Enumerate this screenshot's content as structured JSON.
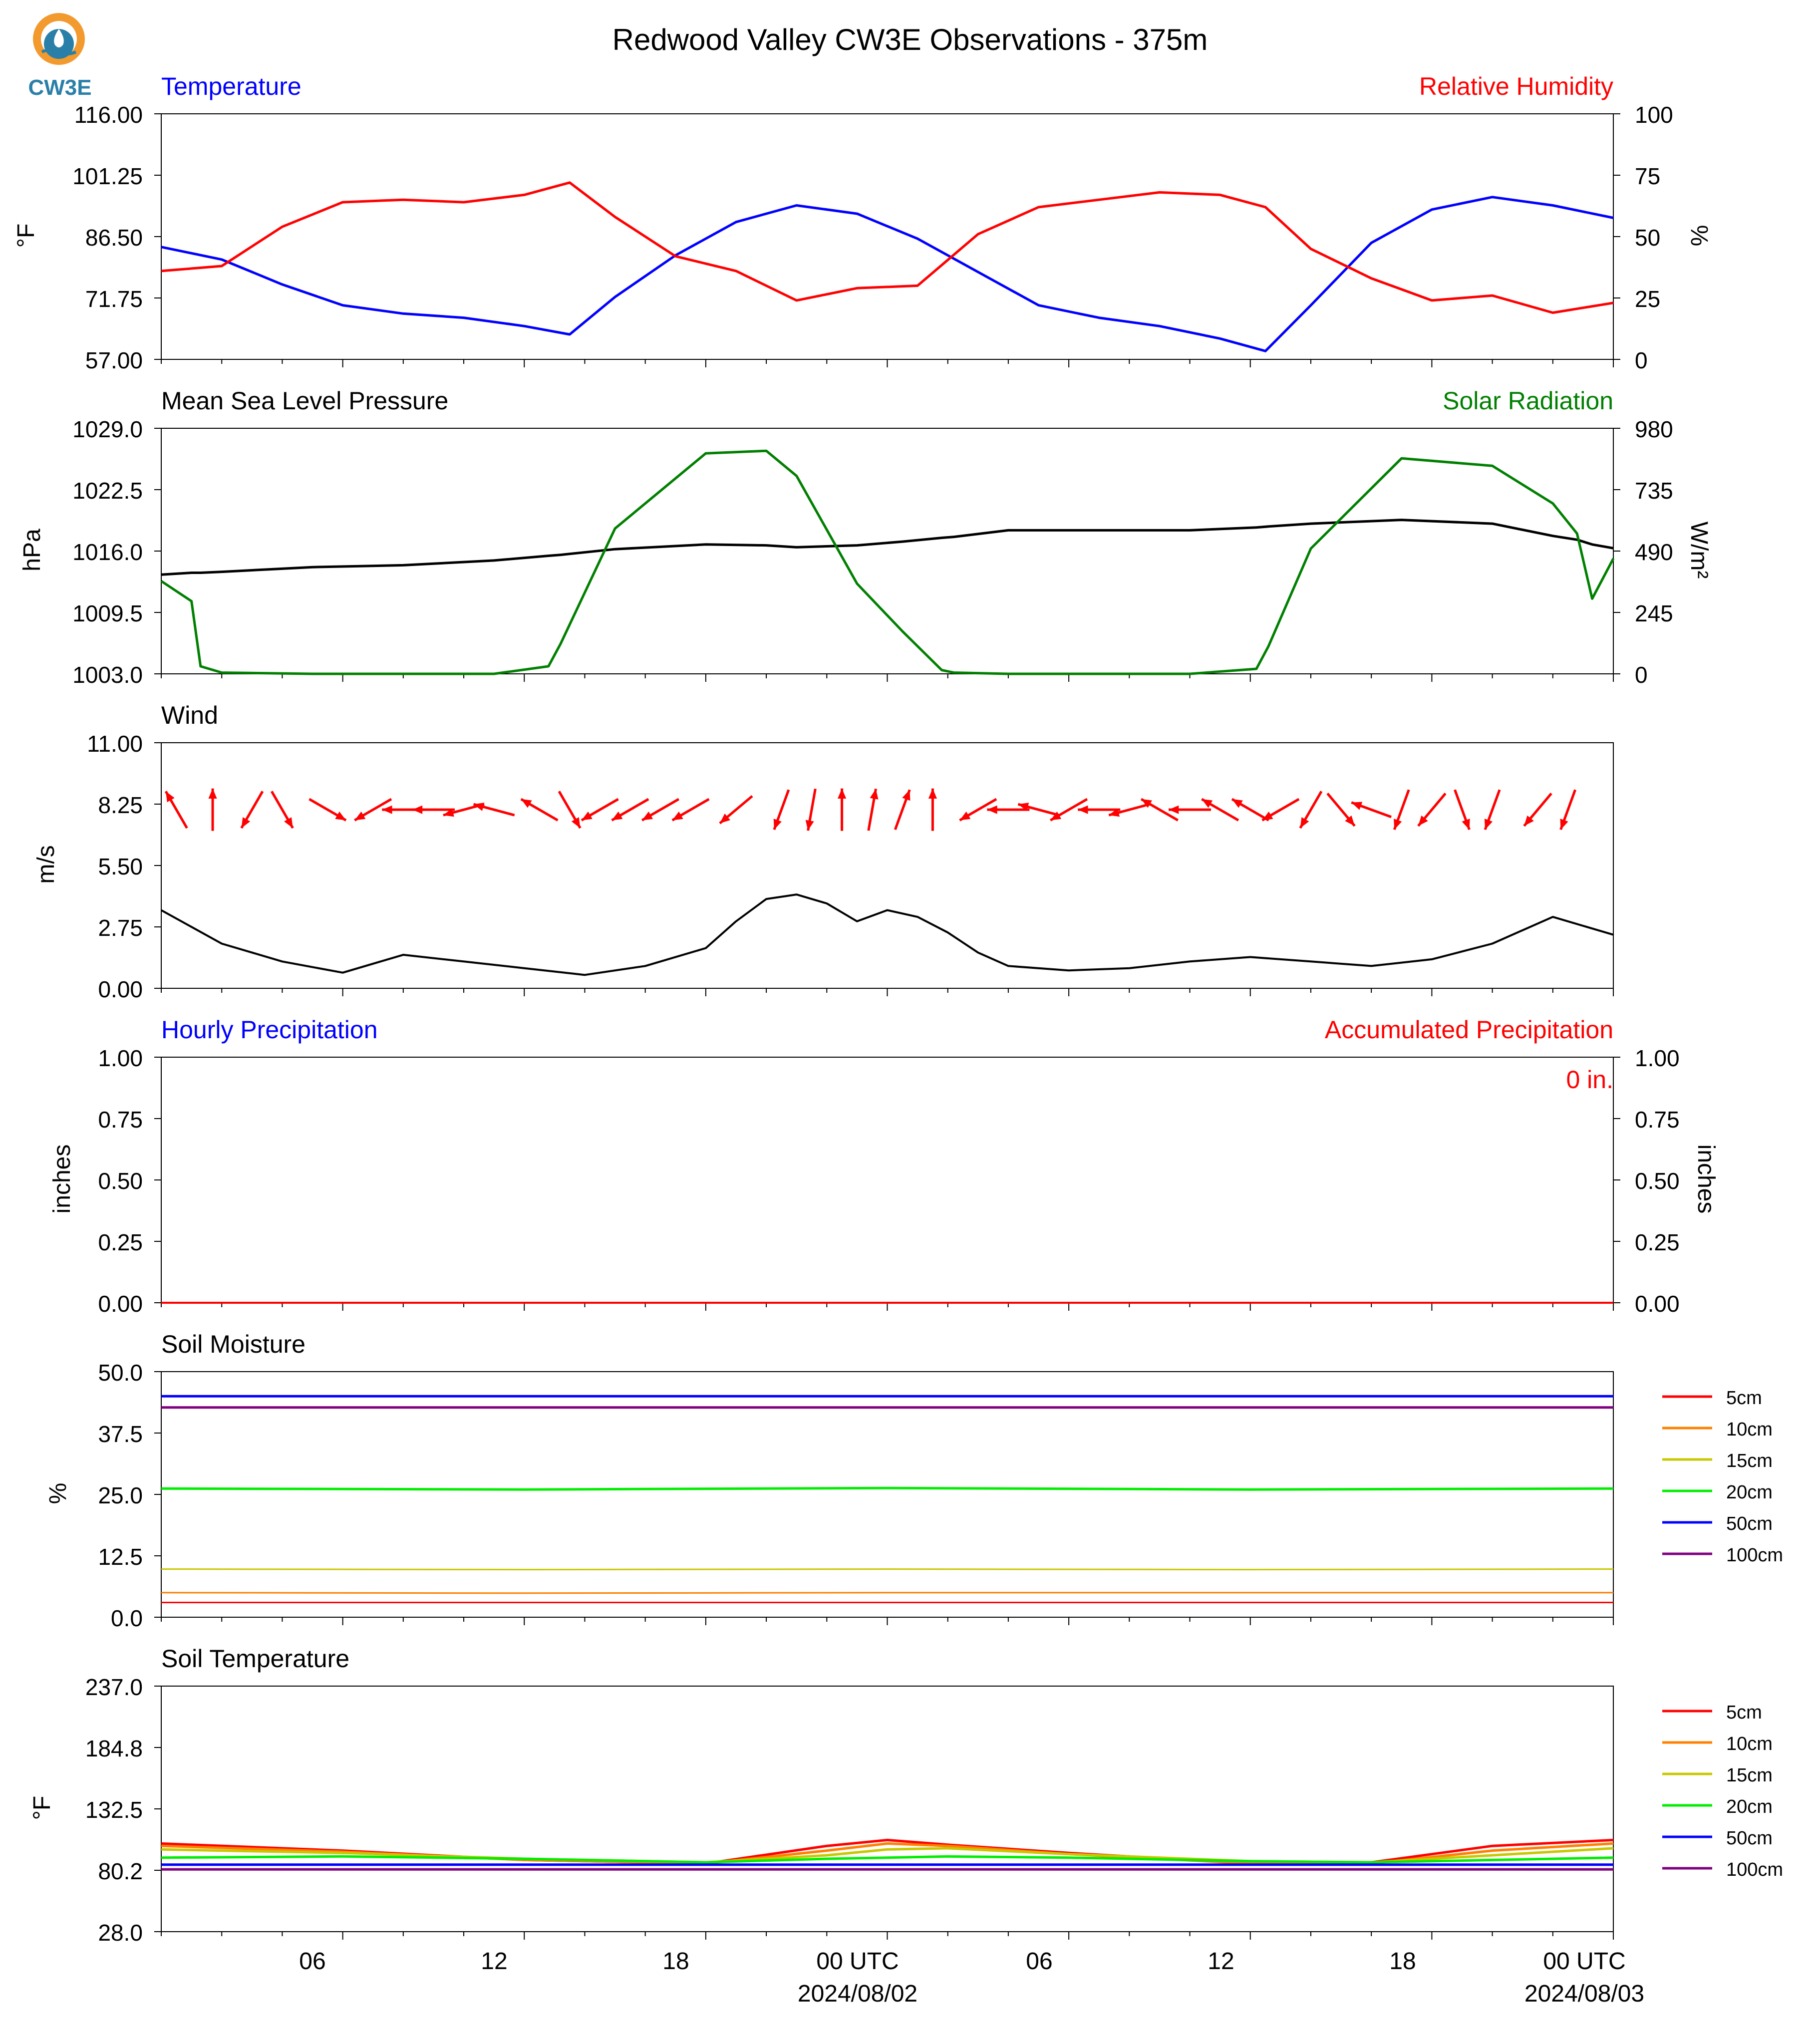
{
  "title": "Redwood Valley CW3E Observations - 375m",
  "logo": {
    "text": "CW3E",
    "icon": "cw3e-logo-icon",
    "colors": {
      "sun": "#f29a2e",
      "water": "#2a7fa8"
    }
  },
  "x_axis": {
    "ticks": [
      "06",
      "12",
      "18",
      "00 UTC",
      "06",
      "12",
      "18",
      "00 UTC"
    ],
    "dates": [
      "2024/08/02",
      "2024/08/03"
    ]
  },
  "panels": {
    "temperature": {
      "left_title": "Temperature",
      "right_title": "Relative Humidity",
      "left_ylabel": "°F",
      "right_ylabel": "%",
      "left_ticks": [
        "116.00",
        "101.25",
        "86.50",
        "71.75",
        "57.00"
      ],
      "right_ticks": [
        "100",
        "75",
        "50",
        "25",
        "0"
      ]
    },
    "pressure": {
      "left_title": "Mean Sea Level Pressure",
      "right_title": "Solar Radiation",
      "left_ylabel": "hPa",
      "right_ylabel": "W/m²",
      "left_ticks": [
        "1029.0",
        "1022.5",
        "1016.0",
        "1009.5",
        "1003.0"
      ],
      "right_ticks": [
        "980",
        "735",
        "490",
        "245",
        "0"
      ]
    },
    "wind": {
      "left_title": "Wind",
      "left_ylabel": "m/s",
      "left_ticks": [
        "11.00",
        "8.25",
        "5.50",
        "2.75",
        "0.00"
      ]
    },
    "precip": {
      "left_title": "Hourly Precipitation",
      "right_title": "Accumulated Precipitation",
      "left_ylabel": "inches",
      "right_ylabel": "inches",
      "left_ticks": [
        "1.00",
        "0.75",
        "0.50",
        "0.25",
        "0.00"
      ],
      "right_ticks": [
        "1.00",
        "0.75",
        "0.50",
        "0.25",
        "0.00"
      ],
      "total_label": "0 in."
    },
    "soil_moisture": {
      "left_title": "Soil Moisture",
      "left_ylabel": "%",
      "left_ticks": [
        "50.0",
        "37.5",
        "25.0",
        "12.5",
        "0.0"
      ]
    },
    "soil_temperature": {
      "left_title": "Soil Temperature",
      "left_ylabel": "°F",
      "left_ticks": [
        "237.0",
        "184.8",
        "132.5",
        "80.2",
        "28.0"
      ]
    }
  },
  "legend": [
    {
      "label": "5cm",
      "color": "#ff0000"
    },
    {
      "label": "10cm",
      "color": "#ff8000"
    },
    {
      "label": "15cm",
      "color": "#c8c800"
    },
    {
      "label": "20cm",
      "color": "#00ee00"
    },
    {
      "label": "50cm",
      "color": "#0000ff"
    },
    {
      "label": "100cm",
      "color": "#800080"
    }
  ],
  "colors": {
    "temperature": "#0000ff",
    "humidity": "#ff0000",
    "pressure": "#000000",
    "solar": "#008000",
    "wind": "#000000",
    "wind_arrows": "#ff0000",
    "precip": "#ff0000"
  },
  "chart_data": [
    {
      "type": "line",
      "title": "Temperature / Relative Humidity",
      "x": [
        0,
        2,
        4,
        6,
        8,
        10,
        12,
        13.5,
        15,
        17,
        19,
        21,
        23,
        25,
        27,
        29,
        31,
        33,
        35,
        36.5,
        38,
        40,
        42,
        44,
        46,
        48
      ],
      "series": [
        {
          "name": "Temperature",
          "axis": "left",
          "unit": "°F",
          "values": [
            84,
            81,
            75,
            70,
            68,
            67,
            65,
            63,
            72,
            82,
            90,
            94,
            92,
            86,
            78,
            70,
            67,
            65,
            62,
            59,
            70,
            85,
            93,
            96,
            94,
            91
          ]
        },
        {
          "name": "Relative Humidity",
          "axis": "right",
          "unit": "%",
          "values": [
            36,
            38,
            54,
            64,
            65,
            64,
            67,
            72,
            58,
            42,
            36,
            24,
            29,
            30,
            51,
            62,
            65,
            68,
            67,
            62,
            45,
            33,
            24,
            26,
            19,
            23
          ]
        }
      ],
      "ylim_left": [
        57,
        116
      ],
      "ylim_right": [
        0,
        100
      ]
    },
    {
      "type": "line",
      "title": "Mean Sea Level Pressure / Solar Radiation",
      "x": [
        0,
        1,
        1.3,
        2,
        5,
        8,
        11,
        12.8,
        13.2,
        15,
        18,
        20,
        21,
        23,
        24.5,
        25.8,
        26.2,
        28,
        34,
        36.2,
        36.6,
        38,
        41,
        44,
        46,
        46.8,
        47.3,
        48
      ],
      "series": [
        {
          "name": "Mean Sea Level Pressure",
          "axis": "left",
          "unit": "hPa",
          "values": [
            1013.5,
            1013.7,
            1013.7,
            1013.8,
            1014.3,
            1014.5,
            1015.0,
            1015.5,
            1015.6,
            1016.2,
            1016.7,
            1016.6,
            1016.4,
            1016.6,
            1017.0,
            1017.4,
            1017.5,
            1018.2,
            1018.2,
            1018.5,
            1018.6,
            1018.9,
            1019.3,
            1018.9,
            1017.6,
            1017.2,
            1016.7,
            1016.3
          ]
        },
        {
          "name": "Solar Radiation",
          "axis": "right",
          "unit": "W/m²",
          "values": [
            370,
            290,
            30,
            5,
            0,
            0,
            0,
            30,
            120,
            580,
            880,
            890,
            790,
            360,
            170,
            15,
            5,
            0,
            0,
            20,
            110,
            500,
            860,
            830,
            680,
            560,
            300,
            460
          ]
        }
      ],
      "ylim_left": [
        1003,
        1029
      ],
      "ylim_right": [
        0,
        980
      ]
    },
    {
      "type": "line",
      "title": "Wind",
      "unit": "m/s",
      "x": [
        0,
        2,
        4,
        6,
        8,
        10,
        12,
        14,
        16,
        18,
        19,
        20,
        21,
        22,
        23,
        24,
        25,
        26,
        27,
        28,
        30,
        32,
        34,
        36,
        38,
        40,
        42,
        44,
        46,
        48
      ],
      "series": [
        {
          "name": "Wind",
          "values": [
            3.5,
            2.0,
            1.2,
            0.7,
            1.5,
            1.2,
            0.9,
            0.6,
            1.0,
            1.8,
            3.0,
            4.0,
            4.2,
            3.8,
            3.0,
            3.5,
            3.2,
            2.5,
            1.6,
            1.0,
            0.8,
            0.9,
            1.2,
            1.4,
            1.2,
            1.0,
            1.3,
            2.0,
            3.2,
            2.4
          ]
        }
      ],
      "arrows": {
        "color": "#ff0000",
        "x": [
          0.5,
          1.7,
          3.0,
          4.0,
          5.5,
          7.0,
          8.0,
          9.0,
          10.0,
          11.0,
          12.5,
          13.5,
          14.5,
          15.5,
          16.5,
          17.5,
          19.0,
          20.5,
          21.5,
          22.5,
          23.5,
          24.5,
          25.5,
          27.0,
          28.0,
          29.0,
          30.0,
          31.0,
          32.0,
          33.0,
          34.0,
          35.0,
          36.0,
          37.0,
          38.0,
          39.0,
          40.0,
          41.0,
          42.0,
          43.0,
          44.0,
          45.5,
          46.5
        ],
        "dir_deg": [
          330,
          0,
          210,
          150,
          120,
          240,
          270,
          270,
          255,
          285,
          300,
          150,
          240,
          240,
          240,
          240,
          230,
          200,
          190,
          0,
          10,
          20,
          0,
          240,
          270,
          285,
          240,
          270,
          255,
          300,
          270,
          300,
          300,
          240,
          210,
          140,
          290,
          200,
          220,
          160,
          200,
          220,
          200
        ]
      }
    },
    {
      "type": "line",
      "title": "Precipitation",
      "x": [
        0,
        48
      ],
      "series": [
        {
          "name": "Hourly Precipitation",
          "axis": "left",
          "unit": "inches",
          "values": [
            0,
            0
          ]
        },
        {
          "name": "Accumulated Precipitation",
          "axis": "right",
          "unit": "inches",
          "values": [
            0,
            0
          ]
        }
      ],
      "ylim_left": [
        0,
        1
      ],
      "ylim_right": [
        0,
        1
      ]
    },
    {
      "type": "line",
      "title": "Soil Moisture",
      "unit": "%",
      "x": [
        0,
        12,
        24,
        36,
        48
      ],
      "series": [
        {
          "name": "5cm",
          "values": [
            3.0,
            3.0,
            3.0,
            3.0,
            3.0
          ]
        },
        {
          "name": "10cm",
          "values": [
            5.0,
            4.9,
            5.0,
            5.0,
            5.0
          ]
        },
        {
          "name": "15cm",
          "values": [
            9.8,
            9.7,
            9.8,
            9.7,
            9.8
          ]
        },
        {
          "name": "20cm",
          "values": [
            26.2,
            26.0,
            26.3,
            26.0,
            26.2
          ]
        },
        {
          "name": "50cm",
          "values": [
            45.0,
            45.0,
            45.0,
            45.0,
            45.0
          ]
        },
        {
          "name": "100cm",
          "values": [
            42.7,
            42.7,
            42.7,
            42.7,
            42.7
          ]
        }
      ],
      "ylim": [
        0,
        50
      ]
    },
    {
      "type": "line",
      "title": "Soil Temperature",
      "unit": "°F",
      "x": [
        0,
        6,
        12,
        18,
        22,
        24,
        26,
        30,
        36,
        40,
        44,
        48
      ],
      "series": [
        {
          "name": "5cm",
          "values": [
            103,
            97,
            89,
            86,
            101,
            106,
            102,
            95,
            86,
            87,
            101,
            106
          ]
        },
        {
          "name": "10cm",
          "values": [
            101,
            96,
            89,
            86,
            97,
            103,
            101,
            94,
            86,
            86,
            97,
            103
          ]
        },
        {
          "name": "15cm",
          "values": [
            98,
            95,
            90,
            87,
            93,
            98,
            99,
            94,
            88,
            87,
            93,
            99
          ]
        },
        {
          "name": "20cm",
          "values": [
            91,
            92,
            90,
            87,
            90,
            91,
            92,
            91,
            88,
            87,
            89,
            91
          ]
        },
        {
          "name": "50cm",
          "values": [
            85,
            85,
            85,
            85,
            85,
            85,
            85,
            85,
            85,
            85,
            85,
            85
          ]
        },
        {
          "name": "100cm",
          "values": [
            81,
            81,
            81,
            81,
            81,
            81,
            81,
            81,
            81,
            81,
            81,
            81
          ]
        }
      ],
      "ylim": [
        28,
        237
      ]
    }
  ]
}
